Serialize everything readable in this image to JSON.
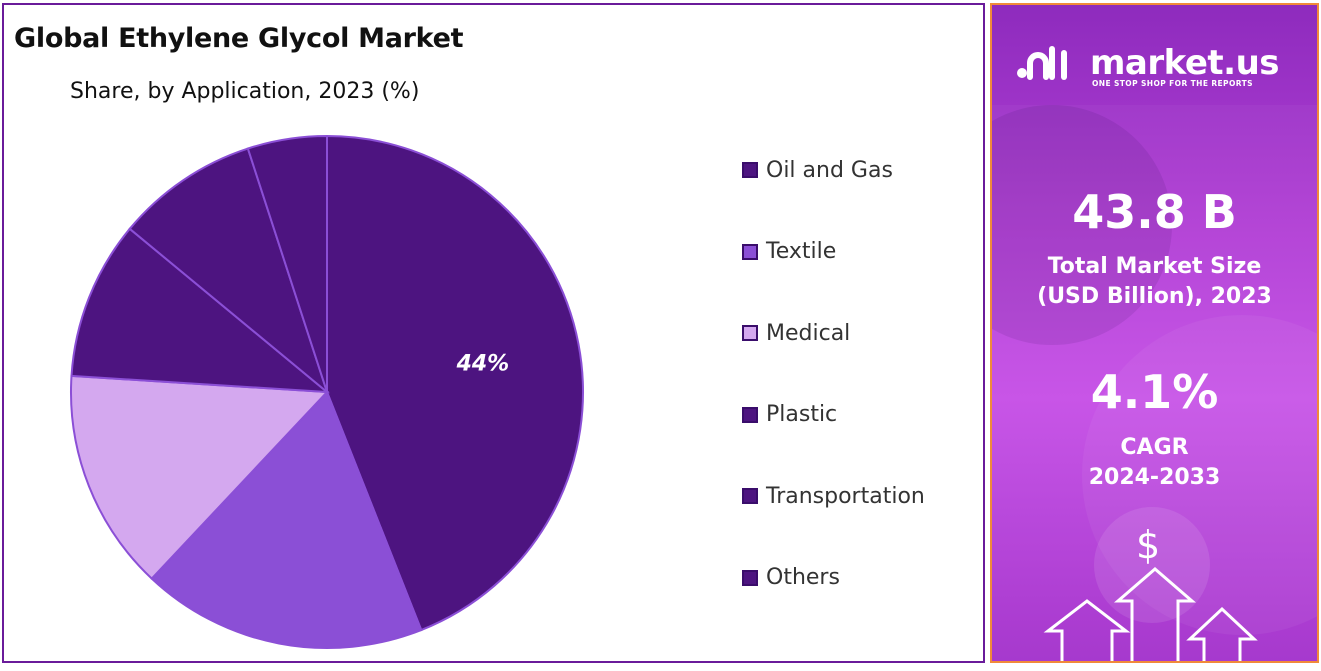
{
  "chart_panel": {
    "title": "Global Ethylene Glycol Market",
    "subtitle": "Share, by Application, 2023 (%)"
  },
  "chart_data": {
    "type": "pie",
    "title": "Global Ethylene Glycol Market",
    "subtitle": "Share, by Application, 2023 (%)",
    "slices": [
      {
        "label": "Oil and Gas",
        "value": 44,
        "color": "#4d1480",
        "data_label": "44%"
      },
      {
        "label": "Textile",
        "value": 18,
        "color": "#8b4fd6",
        "data_label": ""
      },
      {
        "label": "Medical",
        "value": 14,
        "color": "#d4a8ef",
        "data_label": ""
      },
      {
        "label": "Plastic",
        "value": 10,
        "color": "#4d1480",
        "data_label": ""
      },
      {
        "label": "Transportation",
        "value": 9,
        "color": "#4d1480",
        "data_label": ""
      },
      {
        "label": "Others",
        "value": 5,
        "color": "#4d1480",
        "data_label": ""
      }
    ],
    "legend_position": "right"
  },
  "side_panel": {
    "brand": "market.us",
    "tagline": "ONE STOP SHOP FOR THE REPORTS",
    "market_size_value": "43.8 B",
    "market_size_label_line1": "Total Market Size",
    "market_size_label_line2": "(USD Billion), 2023",
    "cagr_value": "4.1%",
    "cagr_label_line1": "CAGR",
    "cagr_label_line2": "2024-2033",
    "currency_symbol": "$",
    "accent_color": "#a331cc",
    "border_color": "#f08a3a"
  }
}
